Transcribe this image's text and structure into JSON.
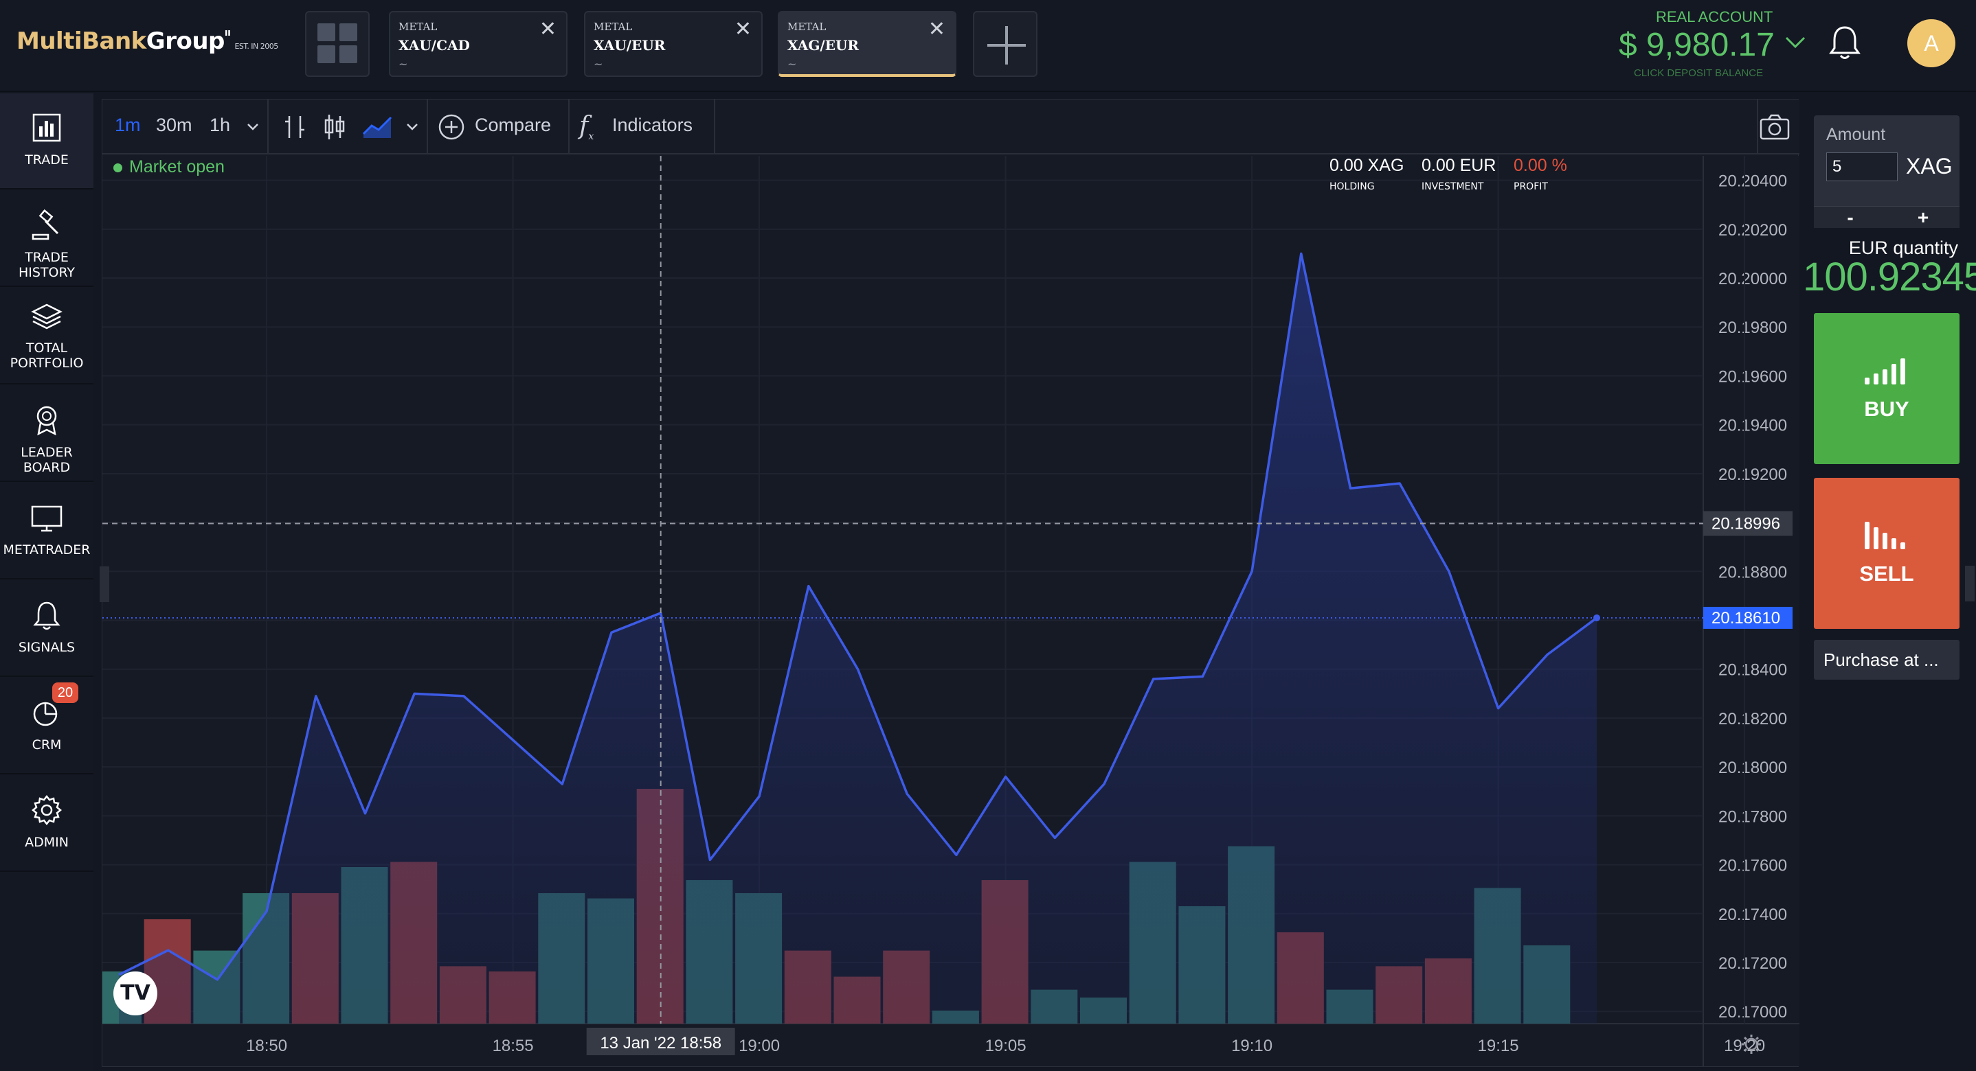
{
  "header": {
    "logo_main": "MultiBank",
    "logo_group": "Group",
    "logo_est": "EST. IN 2005",
    "tabs": [
      {
        "category": "METAL",
        "pair": "XAU/CAD",
        "sub": "~"
      },
      {
        "category": "METAL",
        "pair": "XAU/EUR",
        "sub": "~"
      },
      {
        "category": "METAL",
        "pair": "XAG/EUR",
        "sub": "~"
      }
    ],
    "account_label": "REAL ACCOUNT",
    "account_balance": "$ 9,980.17",
    "account_sub": "CLICK DEPOSIT BALANCE",
    "avatar_initial": "A"
  },
  "sidebar": {
    "items": [
      {
        "label": "TRADE",
        "icon": "bar-chart-icon"
      },
      {
        "label": "TRADE HISTORY",
        "icon": "gavel-icon"
      },
      {
        "label": "TOTAL PORTFOLIO",
        "icon": "layers-icon"
      },
      {
        "label": "LEADER BOARD",
        "icon": "award-icon"
      },
      {
        "label": "METATRADER",
        "icon": "monitor-icon"
      },
      {
        "label": "SIGNALS",
        "icon": "bell-icon"
      },
      {
        "label": "CRM",
        "icon": "pie-chart-icon",
        "badge": "20"
      },
      {
        "label": "ADMIN",
        "icon": "gear-icon"
      }
    ]
  },
  "toolbar": {
    "intervals": [
      "1m",
      "30m",
      "1h"
    ],
    "compare_label": "Compare",
    "indicators_label": "Indicators"
  },
  "chart_panel": {
    "market_status": "Market open",
    "holding_value": "0.00 XAG",
    "holding_label": "HOLDING",
    "investment_value": "0.00 EUR",
    "investment_label": "INVESTMENT",
    "profit_value": "0.00 %",
    "profit_label": "PROFIT",
    "crosshair_price": "20.18996",
    "crosshair_time": "13 Jan '22   18:58",
    "last_price": "20.18610",
    "tradingview_logo": "TV"
  },
  "colors": {
    "line": "#3d5be6",
    "up_volume": "#2f6b68",
    "down_volume": "#8a3a3e",
    "accent_green": "#5cc468",
    "accent_red": "#da5a3c",
    "last_price_tag": "#2962ff"
  },
  "chart_data": {
    "type": "line",
    "instrument": "XAG/EUR",
    "interval": "1m",
    "x": [
      "18:47",
      "18:48",
      "18:49",
      "18:50",
      "18:51",
      "18:52",
      "18:53",
      "18:54",
      "18:55",
      "18:56",
      "18:57",
      "18:58",
      "18:59",
      "19:00",
      "19:01",
      "19:02",
      "19:03",
      "19:04",
      "19:05",
      "19:06",
      "19:07",
      "19:08",
      "19:09",
      "19:10",
      "19:11",
      "19:12",
      "19:13",
      "19:14",
      "19:15",
      "19:16",
      "19:17",
      "19:18"
    ],
    "series": [
      {
        "values": [
          20.1715,
          20.1725,
          20.1713,
          20.1741,
          20.1829,
          20.1781,
          20.183,
          20.1829,
          20.1811,
          20.1793,
          20.1855,
          20.1863,
          20.1762,
          20.1788,
          20.1874,
          20.184,
          20.1789,
          20.1764,
          20.1796,
          20.1771,
          20.1793,
          20.1836,
          20.1837,
          20.188,
          20.201,
          20.1914,
          20.1916,
          20.188,
          20.1824,
          20.1846,
          20.1861,
          20.1861
        ]
      },
      {
        "values": [
          20,
          40,
          28,
          50,
          50,
          60,
          62,
          22,
          20,
          50,
          48,
          90,
          55,
          50,
          28,
          18,
          28,
          5,
          55,
          13,
          10,
          62,
          45,
          68,
          35,
          13,
          22,
          25,
          52,
          30,
          0,
          0
        ]
      }
    ],
    "volume_up": [
      true,
      false,
      true,
      true,
      false,
      true,
      false,
      false,
      false,
      true,
      true,
      false,
      true,
      true,
      false,
      false,
      false,
      true,
      false,
      true,
      true,
      true,
      true,
      true,
      false,
      true,
      false,
      false,
      true,
      true,
      true,
      true
    ],
    "yticks": [
      "20.20400",
      "20.20200",
      "20.20000",
      "20.19800",
      "20.19600",
      "20.19400",
      "20.19200",
      "20.19000",
      "20.18800",
      "20.18600",
      "20.18400",
      "20.18200",
      "20.18000",
      "20.17800",
      "20.17600",
      "20.17400",
      "20.17200",
      "20.17000"
    ],
    "xticks": [
      "18:50",
      "18:55",
      "19:00",
      "19:05",
      "19:10",
      "19:15",
      "19:20"
    ],
    "ylim": [
      20.1695,
      20.205
    ],
    "grid": true
  },
  "trade_panel": {
    "amount_label": "Amount",
    "amount_value": "5",
    "amount_unit": "XAG",
    "minus": "-",
    "plus": "+",
    "eur_quantity_label": "EUR quantity",
    "eur_quantity_value": "100.92345",
    "buy_label": "BUY",
    "sell_label": "SELL",
    "purchase_label": "Purchase at ..."
  }
}
